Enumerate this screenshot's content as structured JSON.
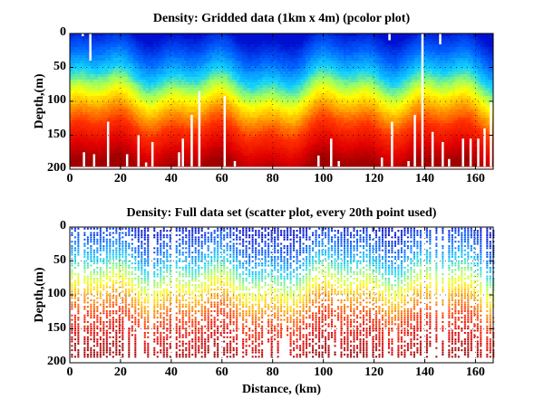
{
  "chart_data": [
    {
      "type": "heatmap",
      "title": "Density: Gridded data (1km x 4m) (pcolor plot)",
      "xlabel": "",
      "ylabel": "Depth,(m)",
      "xlim": [
        0,
        167
      ],
      "ylim": [
        200,
        0
      ],
      "xticks": [
        0,
        20,
        40,
        60,
        80,
        100,
        120,
        140,
        160
      ],
      "yticks": [
        0,
        50,
        100,
        150,
        200
      ],
      "grid": "dotted",
      "colormap": "jet",
      "color_by_depth": [
        {
          "depth": 0,
          "color": "#0010d0"
        },
        {
          "depth": 30,
          "color": "#0060ff"
        },
        {
          "depth": 60,
          "color": "#10d0ff"
        },
        {
          "depth": 80,
          "color": "#a0ff60"
        },
        {
          "depth": 95,
          "color": "#ffff00"
        },
        {
          "depth": 115,
          "color": "#ffa000"
        },
        {
          "depth": 140,
          "color": "#ff3000"
        },
        {
          "depth": 170,
          "color": "#e00000"
        },
        {
          "depth": 195,
          "color": "#a00000"
        }
      ],
      "data_bottom_depth": 196,
      "gaps": [
        {
          "x": 5,
          "from": 0,
          "to": 4
        },
        {
          "x": 8,
          "from": 0,
          "to": 40
        },
        {
          "x": 5.5,
          "from": 175,
          "to": 196
        },
        {
          "x": 9.5,
          "from": 178,
          "to": 196
        },
        {
          "x": 15,
          "from": 130,
          "to": 196
        },
        {
          "x": 22.5,
          "from": 178,
          "to": 196
        },
        {
          "x": 27,
          "from": 150,
          "to": 196
        },
        {
          "x": 30,
          "from": 190,
          "to": 196
        },
        {
          "x": 32.5,
          "from": 160,
          "to": 196
        },
        {
          "x": 43,
          "from": 175,
          "to": 196
        },
        {
          "x": 44.5,
          "from": 155,
          "to": 196
        },
        {
          "x": 48,
          "from": 120,
          "to": 196
        },
        {
          "x": 51,
          "from": 85,
          "to": 196
        },
        {
          "x": 61,
          "from": 92,
          "to": 196
        },
        {
          "x": 65,
          "from": 188,
          "to": 196
        },
        {
          "x": 98,
          "from": 180,
          "to": 196
        },
        {
          "x": 103,
          "from": 155,
          "to": 196
        },
        {
          "x": 106,
          "from": 188,
          "to": 196
        },
        {
          "x": 123,
          "from": 183,
          "to": 196
        },
        {
          "x": 126,
          "from": 0,
          "to": 10
        },
        {
          "x": 127,
          "from": 130,
          "to": 196
        },
        {
          "x": 133.5,
          "from": 188,
          "to": 196
        },
        {
          "x": 136,
          "from": 120,
          "to": 196
        },
        {
          "x": 139,
          "from": 0,
          "to": 196
        },
        {
          "x": 143,
          "from": 145,
          "to": 196
        },
        {
          "x": 146,
          "from": 0,
          "to": 16
        },
        {
          "x": 147,
          "from": 160,
          "to": 196
        },
        {
          "x": 149.5,
          "from": 185,
          "to": 196
        },
        {
          "x": 155,
          "from": 155,
          "to": 196
        },
        {
          "x": 158,
          "from": 155,
          "to": 196
        },
        {
          "x": 161,
          "from": 155,
          "to": 196
        },
        {
          "x": 163.5,
          "from": 140,
          "to": 196
        },
        {
          "x": 166,
          "from": 100,
          "to": 196
        }
      ]
    },
    {
      "type": "scatter",
      "title": "Density: Full data set (scatter plot, every 20th point used)",
      "xlabel": "Distance, (km)",
      "ylabel": "Depth,(m)",
      "xlim": [
        0,
        167
      ],
      "ylim": [
        200,
        0
      ],
      "xticks": [
        0,
        20,
        40,
        60,
        80,
        100,
        120,
        140,
        160
      ],
      "yticks": [
        0,
        50,
        100,
        150,
        200
      ],
      "grid": "dotted",
      "colormap": "jet",
      "sampling_note": "every 20th point used",
      "color_by_depth": [
        {
          "depth": 0,
          "color": "#0010d0"
        },
        {
          "depth": 30,
          "color": "#0060ff"
        },
        {
          "depth": 55,
          "color": "#10d0ff"
        },
        {
          "depth": 75,
          "color": "#a0ff60"
        },
        {
          "depth": 90,
          "color": "#ffff00"
        },
        {
          "depth": 110,
          "color": "#ffa000"
        },
        {
          "depth": 135,
          "color": "#ff3000"
        },
        {
          "depth": 165,
          "color": "#e00000"
        },
        {
          "depth": 192,
          "color": "#a00000"
        }
      ],
      "data_bottom_depth": 192
    }
  ]
}
